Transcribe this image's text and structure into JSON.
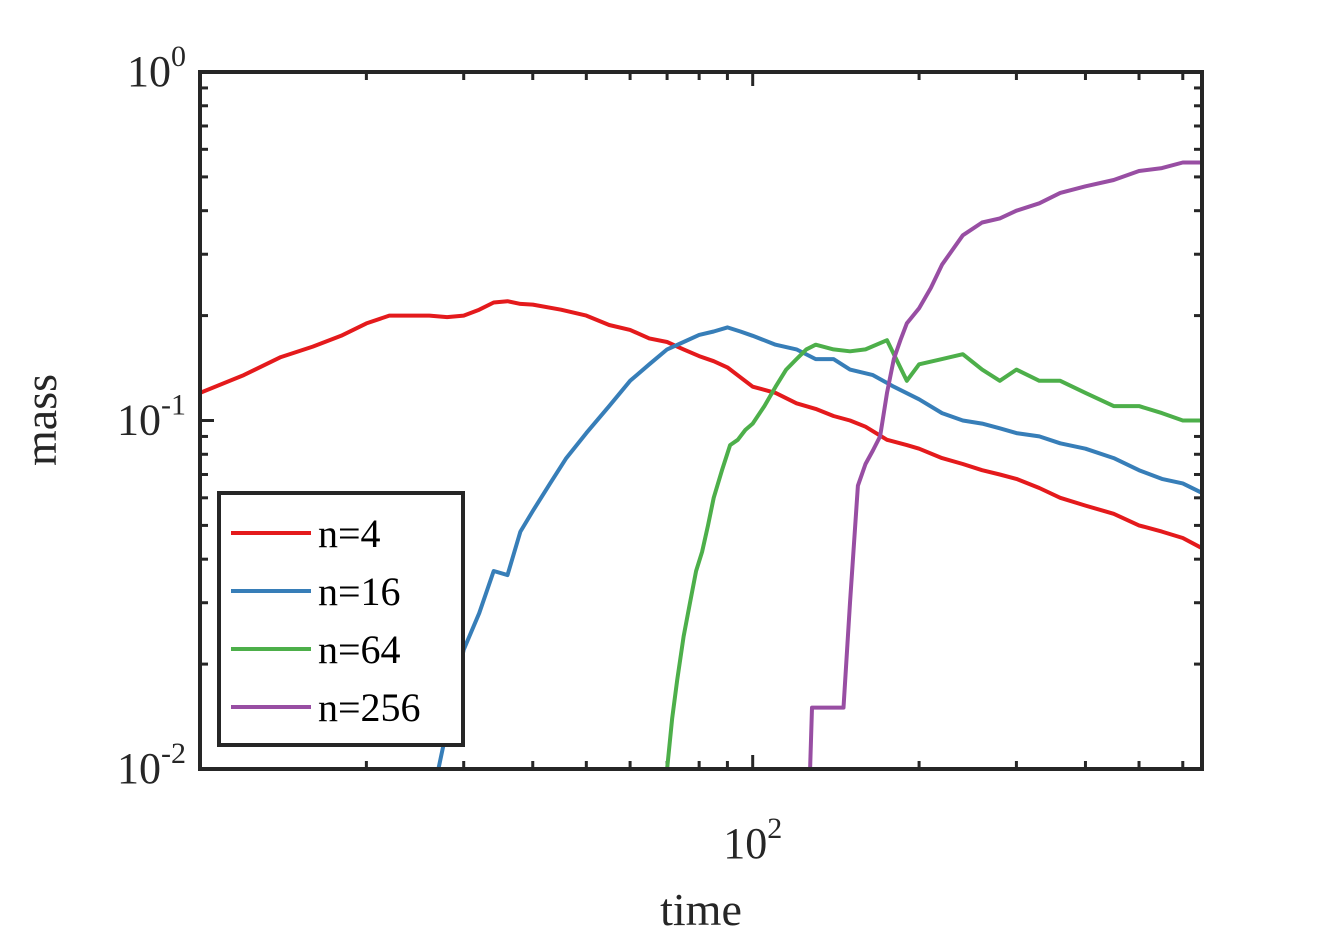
{
  "chart_data": {
    "type": "line",
    "xlabel": "time",
    "ylabel": "mass",
    "xscale": "log",
    "yscale": "log",
    "xlim": [
      10,
      650
    ],
    "ylim": [
      0.01,
      1
    ],
    "grid": false,
    "legend_position": "bottom-left",
    "x_ticks": [
      {
        "value": 100,
        "base": "10",
        "exponent": "2"
      }
    ],
    "y_ticks": [
      {
        "value": 1,
        "base": "10",
        "exponent": "0"
      },
      {
        "value": 0.1,
        "base": "10",
        "exponent": "-1"
      },
      {
        "value": 0.01,
        "base": "10",
        "exponent": "-2"
      }
    ],
    "series": [
      {
        "name": "n=4",
        "color": "#e41a1c",
        "x": [
          10,
          12,
          14,
          16,
          18,
          20,
          22,
          24,
          26,
          28,
          30,
          32,
          34,
          36,
          38,
          40,
          45,
          50,
          55,
          60,
          65,
          70,
          75,
          80,
          85,
          90,
          95,
          100,
          110,
          120,
          130,
          140,
          150,
          160,
          175,
          190,
          200,
          220,
          240,
          260,
          280,
          300,
          330,
          360,
          400,
          450,
          500,
          550,
          600,
          650
        ],
        "y": [
          0.12,
          0.135,
          0.152,
          0.163,
          0.175,
          0.19,
          0.2,
          0.2,
          0.2,
          0.198,
          0.2,
          0.208,
          0.218,
          0.22,
          0.216,
          0.215,
          0.208,
          0.2,
          0.188,
          0.182,
          0.172,
          0.168,
          0.16,
          0.153,
          0.148,
          0.142,
          0.133,
          0.125,
          0.12,
          0.112,
          0.108,
          0.103,
          0.1,
          0.096,
          0.088,
          0.085,
          0.083,
          0.078,
          0.075,
          0.072,
          0.07,
          0.068,
          0.064,
          0.06,
          0.057,
          0.054,
          0.05,
          0.048,
          0.046,
          0.043
        ]
      },
      {
        "name": "n=16",
        "color": "#377eb8",
        "x": [
          27,
          28.5,
          30,
          32,
          34,
          36,
          38,
          40,
          43,
          46,
          50,
          55,
          60,
          65,
          70,
          75,
          80,
          85,
          90,
          95,
          100,
          110,
          120,
          130,
          140,
          150,
          165,
          180,
          200,
          220,
          240,
          260,
          280,
          300,
          330,
          360,
          400,
          450,
          500,
          550,
          600,
          650
        ],
        "y": [
          0.01,
          0.015,
          0.022,
          0.028,
          0.037,
          0.036,
          0.048,
          0.055,
          0.066,
          0.078,
          0.092,
          0.11,
          0.13,
          0.145,
          0.16,
          0.168,
          0.176,
          0.18,
          0.185,
          0.18,
          0.175,
          0.165,
          0.16,
          0.15,
          0.15,
          0.14,
          0.135,
          0.125,
          0.115,
          0.105,
          0.1,
          0.098,
          0.095,
          0.092,
          0.09,
          0.086,
          0.083,
          0.078,
          0.072,
          0.068,
          0.066,
          0.062
        ]
      },
      {
        "name": "n=64",
        "color": "#4daf4a",
        "x": [
          70,
          71.5,
          73,
          75,
          77,
          79,
          81,
          83,
          85,
          88,
          91,
          94,
          97,
          100,
          105,
          110,
          115,
          120,
          125,
          130,
          140,
          150,
          160,
          175,
          190,
          200,
          220,
          240,
          260,
          280,
          300,
          330,
          360,
          400,
          450,
          500,
          550,
          600,
          650
        ],
        "y": [
          0.01,
          0.014,
          0.018,
          0.024,
          0.03,
          0.037,
          0.042,
          0.05,
          0.06,
          0.072,
          0.085,
          0.088,
          0.094,
          0.098,
          0.11,
          0.125,
          0.14,
          0.15,
          0.16,
          0.165,
          0.16,
          0.158,
          0.16,
          0.17,
          0.13,
          0.145,
          0.15,
          0.155,
          0.14,
          0.13,
          0.14,
          0.13,
          0.13,
          0.12,
          0.11,
          0.11,
          0.105,
          0.1,
          0.1
        ]
      },
      {
        "name": "n=256",
        "color": "#984ea3",
        "x": [
          127,
          128,
          131,
          134,
          137,
          140,
          143,
          146,
          150,
          155,
          160,
          165,
          170,
          175,
          180,
          185,
          190,
          200,
          210,
          220,
          240,
          260,
          280,
          300,
          330,
          360,
          400,
          450,
          500,
          550,
          600,
          650
        ],
        "y": [
          0.01,
          0.015,
          0.015,
          0.015,
          0.015,
          0.015,
          0.015,
          0.015,
          0.03,
          0.065,
          0.075,
          0.082,
          0.09,
          0.12,
          0.15,
          0.17,
          0.19,
          0.21,
          0.24,
          0.28,
          0.34,
          0.37,
          0.38,
          0.4,
          0.42,
          0.45,
          0.47,
          0.49,
          0.52,
          0.53,
          0.55,
          0.55
        ]
      }
    ]
  }
}
